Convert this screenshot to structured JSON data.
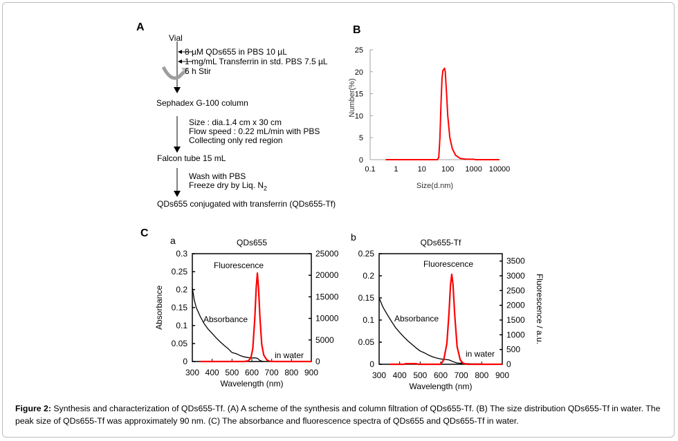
{
  "panelA": {
    "letter": "A",
    "vial": "Vial",
    "step1": "8 µM QDs655 in PBS 10 µL",
    "step2": "1 mg/mL Transferrin in std. PBS 7.5 µL",
    "step3": "6 h Stir",
    "column": "Sephadex G-100 column",
    "col_size": "Size : dia.1.4 cm x 30 cm",
    "col_flow": "Flow speed : 0.22 mL/min with PBS",
    "col_collect": "Collecting only red region",
    "falcon": "Falcon tube 15 mL",
    "wash": "Wash with PBS",
    "freeze": "Freeze dry by Liq. N",
    "freeze_sub": "2",
    "product": "QDs655 conjugated with transferrin (QDs655-Tf)"
  },
  "panelC": {
    "letter": "C"
  },
  "chart_data": [
    {
      "id": "B",
      "panel_letter": "B",
      "type": "line",
      "title": "",
      "xlabel": "Size(d.nm)",
      "ylabel": "Number(%)",
      "xscale": "log",
      "xlim": [
        0.1,
        10000
      ],
      "ylim": [
        0,
        25
      ],
      "xticks": [
        "0.1",
        "1",
        "10",
        "100",
        "1000",
        "10000"
      ],
      "yticks": [
        "0",
        "5",
        "10",
        "15",
        "20",
        "25"
      ],
      "color": "#ff0000",
      "series": [
        {
          "name": "QDs655-Tf",
          "x": [
            0.4,
            1,
            10,
            40,
            45,
            50,
            55,
            60,
            65,
            70,
            75,
            80,
            90,
            100,
            120,
            150,
            200,
            300,
            500,
            1000,
            1200,
            10000
          ],
          "y": [
            0,
            0,
            0,
            0,
            0.5,
            5,
            13,
            18.5,
            20.3,
            20.5,
            20.8,
            20,
            15,
            10,
            5,
            2.5,
            1,
            0.3,
            0.1,
            0.1,
            0,
            0
          ]
        }
      ]
    },
    {
      "id": "Ca",
      "sub_letter": "a",
      "type": "line",
      "title": "QDs655",
      "xlabel": "Wavelength (nm)",
      "ylabel": "Absorbance",
      "y2label": "",
      "xlim": [
        300,
        900
      ],
      "ylim": [
        0,
        0.3
      ],
      "y2lim": [
        0,
        25000
      ],
      "xticks": [
        "300",
        "400",
        "500",
        "600",
        "700",
        "800",
        "900"
      ],
      "yticks": [
        "0",
        "0.05",
        "0.1",
        "0.15",
        "0.2",
        "0.25",
        "0.3"
      ],
      "y2ticks": [
        "0",
        "5000",
        "10000",
        "15000",
        "20000",
        "25000"
      ],
      "annotations": {
        "fluor": "Fluorescence",
        "abs": "Absorbance",
        "water": "in water"
      },
      "series": [
        {
          "name": "Absorbance",
          "axis": "left",
          "color": "#000000",
          "x": [
            300,
            310,
            320,
            340,
            360,
            380,
            400,
            420,
            440,
            460,
            480,
            500,
            520,
            540,
            560,
            580,
            600,
            620,
            630,
            640,
            650,
            660
          ],
          "y": [
            0.205,
            0.17,
            0.15,
            0.125,
            0.105,
            0.09,
            0.078,
            0.066,
            0.055,
            0.045,
            0.036,
            0.025,
            0.022,
            0.017,
            0.013,
            0.011,
            0.01,
            0.01,
            0.008,
            0.003,
            0.001,
            0
          ]
        },
        {
          "name": "Fluorescence",
          "axis": "right",
          "color": "#ff0000",
          "x": [
            340,
            560,
            580,
            595,
            605,
            615,
            622,
            628,
            634,
            641,
            650,
            660,
            675,
            690,
            720,
            900
          ],
          "y": [
            0,
            0,
            100,
            800,
            3000,
            10000,
            17000,
            20500,
            17000,
            10000,
            4000,
            1500,
            400,
            50,
            0,
            0
          ]
        }
      ]
    },
    {
      "id": "Cb",
      "sub_letter": "b",
      "type": "line",
      "title": "QDs655-Tf",
      "xlabel": "Wavelength (nm)",
      "ylabel": "",
      "y2label": "Fluorescence / a.u.",
      "xlim": [
        300,
        900
      ],
      "ylim": [
        0,
        0.25
      ],
      "y2lim": [
        0,
        3750
      ],
      "xticks": [
        "300",
        "400",
        "500",
        "600",
        "700",
        "800",
        "900"
      ],
      "yticks": [
        "0",
        "0.05",
        "0.1",
        "0.15",
        "0.2",
        "0.25"
      ],
      "y2ticks": [
        "0",
        "500",
        "1000",
        "1500",
        "2000",
        "2500",
        "3000",
        "3500"
      ],
      "annotations": {
        "fluor": "Fluorescence",
        "abs": "Absorbance",
        "water": "in water"
      },
      "series": [
        {
          "name": "Absorbance",
          "axis": "left",
          "color": "#000000",
          "x": [
            300,
            320,
            340,
            360,
            380,
            400,
            420,
            440,
            460,
            480,
            500,
            520,
            540,
            560,
            580,
            600,
            620,
            640,
            660,
            680,
            700,
            750,
            800
          ],
          "y": [
            0.15,
            0.128,
            0.112,
            0.097,
            0.083,
            0.072,
            0.062,
            0.053,
            0.045,
            0.037,
            0.03,
            0.026,
            0.021,
            0.017,
            0.014,
            0.012,
            0.011,
            0.01,
            0.006,
            0.003,
            0.002,
            0.001,
            0.001
          ]
        },
        {
          "name": "Fluorescence",
          "axis": "right",
          "color": "#ff0000",
          "x": [
            350,
            420,
            430,
            480,
            490,
            600,
            615,
            630,
            640,
            648,
            654,
            660,
            668,
            680,
            695,
            710,
            730,
            900
          ],
          "y": [
            0,
            0,
            20,
            20,
            0,
            0,
            150,
            700,
            1700,
            2700,
            3050,
            2700,
            1700,
            600,
            150,
            30,
            0,
            0
          ]
        }
      ]
    }
  ],
  "caption": {
    "label": "Figure 2:",
    "text": " Synthesis and characterization of QDs655-Tf. (A) A scheme of the synthesis and column filtration of QDs655-Tf. (B) The size distribution QDs655-Tf in water. The peak size of QDs655-Tf was approximately 90 nm. (C) The absorbance and fluorescence spectra of QDs655 and QDs655-Tf in water."
  }
}
